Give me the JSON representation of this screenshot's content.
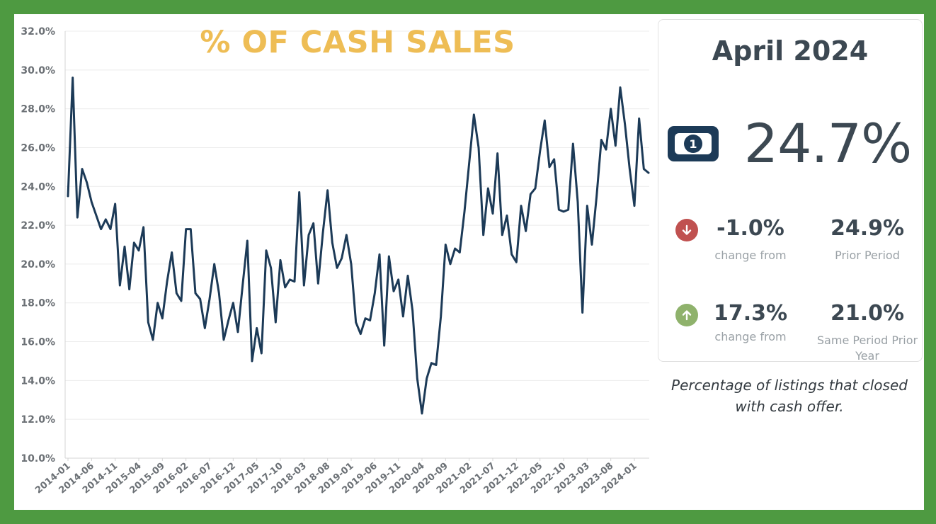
{
  "chart_data": {
    "type": "line",
    "title": "% OF CASH SALES",
    "xlabel": "",
    "ylabel": "",
    "ylim": [
      10.0,
      32.0
    ],
    "y_ticks": [
      "10.0%",
      "12.0%",
      "14.0%",
      "16.0%",
      "18.0%",
      "20.0%",
      "22.0%",
      "24.0%",
      "26.0%",
      "28.0%",
      "30.0%",
      "32.0%"
    ],
    "x_tick_labels": [
      "2014-01",
      "2014-06",
      "2014-11",
      "2015-04",
      "2015-09",
      "2016-02",
      "2016-07",
      "2016-12",
      "2017-05",
      "2017-10",
      "2018-03",
      "2018-08",
      "2019-01",
      "2019-06",
      "2019-11",
      "2020-04",
      "2020-09",
      "2021-02",
      "2021-07",
      "2021-12",
      "2022-05",
      "2022-10",
      "2023-03",
      "2023-08",
      "2024-01"
    ],
    "x_start": "2014-01",
    "x_end": "2024-04",
    "grid": true,
    "series": [
      {
        "color": "#1c3a57",
        "values": [
          23.5,
          29.6,
          22.4,
          24.9,
          24.2,
          23.2,
          22.5,
          21.8,
          22.3,
          21.8,
          23.1,
          18.9,
          20.9,
          18.7,
          21.1,
          20.7,
          21.9,
          17.0,
          16.1,
          18.0,
          17.2,
          19.1,
          20.6,
          18.5,
          18.1,
          21.8,
          21.8,
          18.5,
          18.2,
          16.7,
          18.2,
          20.0,
          18.5,
          16.1,
          17.1,
          18.0,
          16.5,
          18.9,
          21.2,
          15.0,
          16.7,
          15.4,
          20.7,
          19.8,
          17.0,
          20.2,
          18.8,
          19.2,
          19.1,
          23.7,
          18.9,
          21.5,
          22.1,
          19.0,
          21.6,
          23.8,
          21.1,
          19.8,
          20.3,
          21.5,
          20.0,
          17.0,
          16.4,
          17.2,
          17.1,
          18.5,
          20.5,
          15.8,
          20.4,
          18.6,
          19.2,
          17.3,
          19.4,
          17.6,
          14.1,
          12.3,
          14.1,
          14.9,
          14.8,
          17.3,
          21.0,
          20.0,
          20.8,
          20.6,
          22.7,
          25.2,
          27.7,
          26.0,
          21.5,
          23.9,
          22.6,
          25.7,
          21.5,
          22.5,
          20.5,
          20.1,
          23.0,
          21.7,
          23.6,
          23.9,
          25.8,
          27.4,
          25.0,
          25.4,
          22.8,
          22.7,
          22.8,
          26.2,
          23.2,
          17.5,
          23.0,
          21.0,
          23.5,
          26.4,
          25.9,
          28.0,
          26.1,
          29.1,
          27.2,
          24.9,
          23.0,
          27.5,
          24.9,
          24.7
        ]
      }
    ]
  },
  "summary": {
    "period": "April 2024",
    "value": "24.7%",
    "icon": "cash-bill-icon",
    "changes": [
      {
        "direction_icon": "arrow-down-icon",
        "change": "-1.0%",
        "change_label": "change from",
        "compare_value": "24.9%",
        "compare_label": "Prior Period",
        "color": "#c05150"
      },
      {
        "direction_icon": "arrow-up-icon",
        "change": "17.3%",
        "change_label": "change from",
        "compare_value": "21.0%",
        "compare_label": "Same Period Prior Year",
        "color": "#8fb26c"
      }
    ],
    "caption": "Percentage of listings that closed with cash offer."
  },
  "colors": {
    "frame": "#4e9a41",
    "title": "#eebd55",
    "line": "#1c3a57",
    "text": "#3c4852"
  }
}
